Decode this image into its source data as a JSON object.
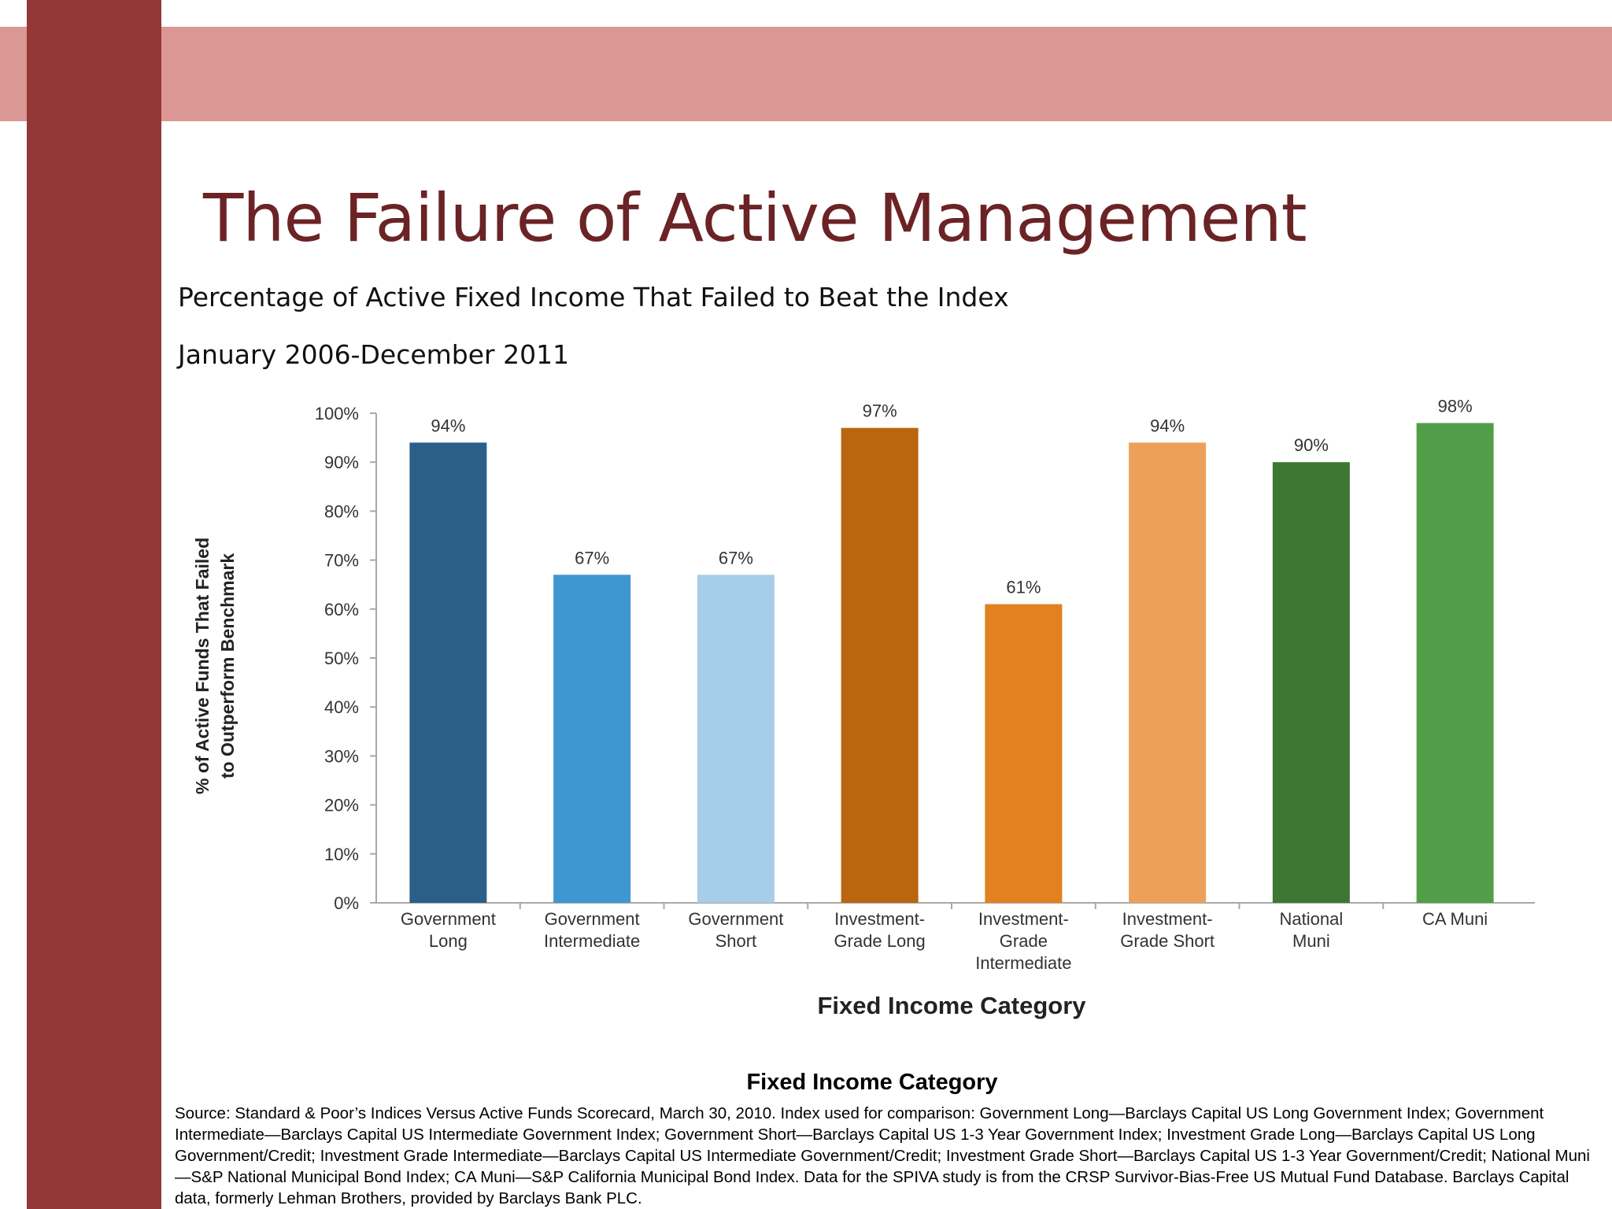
{
  "slide": {
    "title": "The Failure of Active Management",
    "subtitle": "Percentage of Active Fixed Income That Failed to Beat the Index",
    "period": "January 2006-December 2011",
    "footer_title": "Fixed Income Category",
    "source": "Source: Standard & Poor’s Indices Versus Active Funds Scorecard, March 30, 2010. Index used for comparison: Government Long—Barclays Capital US Long Government Index; Government Intermediate—Barclays Capital US Intermediate Government Index; Government Short—Barclays Capital US 1-3 Year Government Index; Investment Grade Long—Barclays Capital US Long Government/Credit; Investment Grade Intermediate—Barclays Capital US Intermediate Government/Credit; Investment Grade Short—Barclays Capital US 1-3 Year Government/Credit; National Muni—S&P National Municipal Bond Index; CA Muni—S&P California Municipal Bond Index. Data for the SPIVA study is from the CRSP Survivor-Bias-Free US Mutual Fund Database. Barclays Capital data, formerly Lehman Brothers, provided by Barclays Bank PLC."
  },
  "chart_data": {
    "type": "bar",
    "title": "",
    "xlabel": "Fixed Income Category",
    "ylabel": "% of Active Funds That Failed to Outperform Benchmark",
    "ylabel_lines": [
      "% of Active Funds That Failed",
      "to Outperform Benchmark"
    ],
    "ylim": [
      0,
      100
    ],
    "yticks": [
      "0%",
      "10%",
      "20%",
      "30%",
      "40%",
      "50%",
      "60%",
      "70%",
      "80%",
      "90%",
      "100%"
    ],
    "categories": [
      [
        "Government",
        "Long"
      ],
      [
        "Government",
        "Intermediate"
      ],
      [
        "Government",
        "Short"
      ],
      [
        "Investment-",
        "Grade Long"
      ],
      [
        "Investment-",
        "Grade",
        "Intermediate"
      ],
      [
        "Investment-",
        "Grade Short"
      ],
      [
        "National",
        "Muni"
      ],
      [
        "CA Muni"
      ]
    ],
    "values": [
      94,
      67,
      67,
      97,
      61,
      94,
      90,
      98
    ],
    "value_labels": [
      "94%",
      "67%",
      "67%",
      "97%",
      "61%",
      "94%",
      "90%",
      "98%"
    ],
    "colors": [
      "#2a5f8a",
      "#3f97d1",
      "#a6cde9",
      "#b9660f",
      "#e3801f",
      "#eda05a",
      "#3e7634",
      "#529e48"
    ],
    "grid": false,
    "legend": "none"
  }
}
